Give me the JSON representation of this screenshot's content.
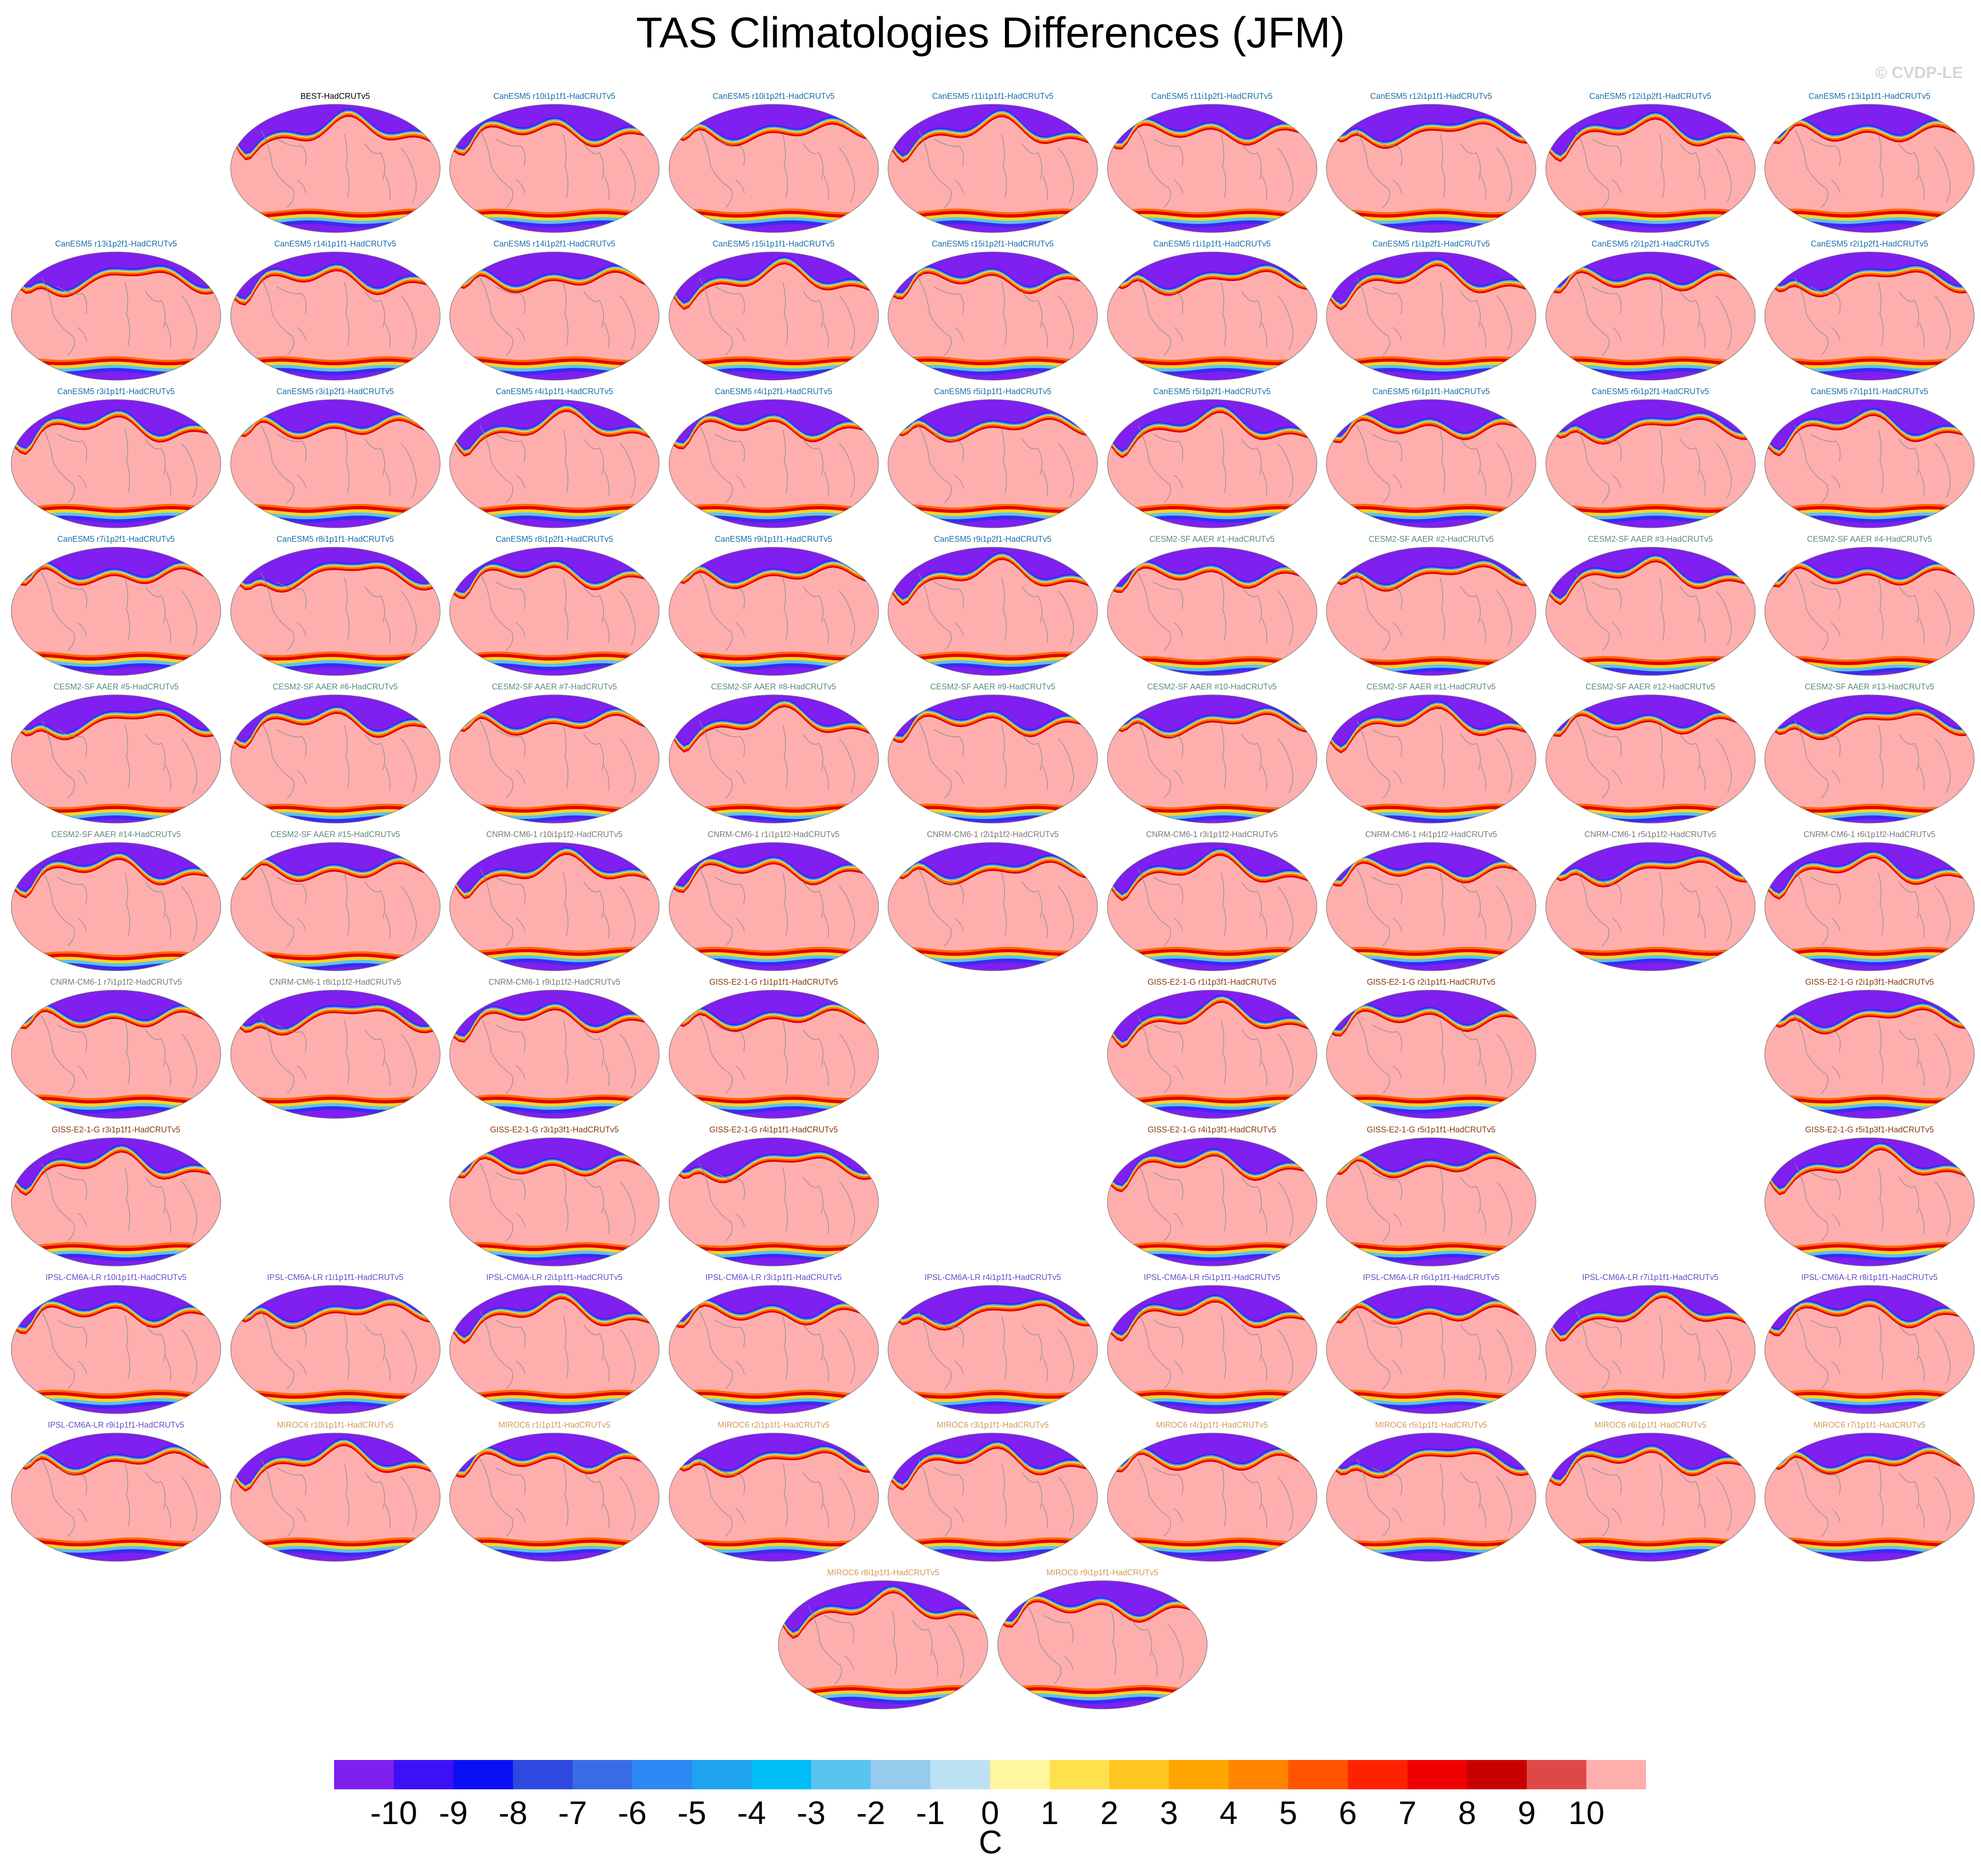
{
  "title": "TAS Climatologies Differences (JFM)",
  "copyright": "© CVDP-LE",
  "colors": {
    "best": "#000000",
    "canesm5": "#1a6fa8",
    "cesm2": "#5d8a7f",
    "cnrm": "#7a7a7a",
    "giss": "#8b3a10",
    "ipsl": "#6a4fc6",
    "miroc6": "#d29a5a"
  },
  "chart_data": {
    "type": "heatmap",
    "title": "TAS Climatologies Differences (JFM)",
    "units": "C",
    "colorbar": {
      "ticks": [
        "-10",
        "-9",
        "-8",
        "-7",
        "-6",
        "-5",
        "-4",
        "-3",
        "-2",
        "-1",
        "0",
        "1",
        "2",
        "3",
        "4",
        "5",
        "6",
        "7",
        "8",
        "9",
        "10"
      ],
      "colors": [
        "#7f1ff0",
        "#3c11f5",
        "#0a10f5",
        "#2e49e0",
        "#3a6be6",
        "#2c88f2",
        "#1ea3f0",
        "#00bdf5",
        "#58c4ef",
        "#96cbee",
        "#bde1f4",
        "#fff6a0",
        "#ffe04d",
        "#ffc520",
        "#ffa500",
        "#ff8400",
        "#ff5500",
        "#ff2200",
        "#f00000",
        "#c80000",
        "#e04848",
        "#ffaeae"
      ]
    },
    "panels": [
      {
        "row": 0,
        "col": 1,
        "label": "BEST-HadCRUTv5",
        "group": "best"
      },
      {
        "row": 0,
        "col": 2,
        "label": "CanESM5 r10i1p1f1-HadCRUTv5",
        "group": "canesm5"
      },
      {
        "row": 0,
        "col": 3,
        "label": "CanESM5 r10i1p2f1-HadCRUTv5",
        "group": "canesm5"
      },
      {
        "row": 0,
        "col": 4,
        "label": "CanESM5 r11i1p1f1-HadCRUTv5",
        "group": "canesm5"
      },
      {
        "row": 0,
        "col": 5,
        "label": "CanESM5 r11i1p2f1-HadCRUTv5",
        "group": "canesm5"
      },
      {
        "row": 0,
        "col": 6,
        "label": "CanESM5 r12i1p1f1-HadCRUTv5",
        "group": "canesm5"
      },
      {
        "row": 0,
        "col": 7,
        "label": "CanESM5 r12i1p2f1-HadCRUTv5",
        "group": "canesm5"
      },
      {
        "row": 0,
        "col": 8,
        "label": "CanESM5 r13i1p1f1-HadCRUTv5",
        "group": "canesm5"
      },
      {
        "row": 1,
        "col": 0,
        "label": "CanESM5 r13i1p2f1-HadCRUTv5",
        "group": "canesm5"
      },
      {
        "row": 1,
        "col": 1,
        "label": "CanESM5 r14i1p1f1-HadCRUTv5",
        "group": "canesm5"
      },
      {
        "row": 1,
        "col": 2,
        "label": "CanESM5 r14i1p2f1-HadCRUTv5",
        "group": "canesm5"
      },
      {
        "row": 1,
        "col": 3,
        "label": "CanESM5 r15i1p1f1-HadCRUTv5",
        "group": "canesm5"
      },
      {
        "row": 1,
        "col": 4,
        "label": "CanESM5 r15i1p2f1-HadCRUTv5",
        "group": "canesm5"
      },
      {
        "row": 1,
        "col": 5,
        "label": "CanESM5 r1i1p1f1-HadCRUTv5",
        "group": "canesm5"
      },
      {
        "row": 1,
        "col": 6,
        "label": "CanESM5 r1i1p2f1-HadCRUTv5",
        "group": "canesm5"
      },
      {
        "row": 1,
        "col": 7,
        "label": "CanESM5 r2i1p2f1-HadCRUTv5",
        "group": "canesm5"
      },
      {
        "row": 1,
        "col": 8,
        "label": "CanESM5 r2i1p2f1-HadCRUTv5",
        "group": "canesm5"
      },
      {
        "row": 2,
        "col": 0,
        "label": "CanESM5 r3i1p1f1-HadCRUTv5",
        "group": "canesm5"
      },
      {
        "row": 2,
        "col": 1,
        "label": "CanESM5 r3i1p2f1-HadCRUTv5",
        "group": "canesm5"
      },
      {
        "row": 2,
        "col": 2,
        "label": "CanESM5 r4i1p1f1-HadCRUTv5",
        "group": "canesm5"
      },
      {
        "row": 2,
        "col": 3,
        "label": "CanESM5 r4i1p2f1-HadCRUTv5",
        "group": "canesm5"
      },
      {
        "row": 2,
        "col": 4,
        "label": "CanESM5 r5i1p1f1-HadCRUTv5",
        "group": "canesm5"
      },
      {
        "row": 2,
        "col": 5,
        "label": "CanESM5 r5i1p2f1-HadCRUTv5",
        "group": "canesm5"
      },
      {
        "row": 2,
        "col": 6,
        "label": "CanESM5 r6i1p1f1-HadCRUTv5",
        "group": "canesm5"
      },
      {
        "row": 2,
        "col": 7,
        "label": "CanESM5 r6i1p2f1-HadCRUTv5",
        "group": "canesm5"
      },
      {
        "row": 2,
        "col": 8,
        "label": "CanESM5 r7i1p1f1-HadCRUTv5",
        "group": "canesm5"
      },
      {
        "row": 3,
        "col": 0,
        "label": "CanESM5 r7i1p2f1-HadCRUTv5",
        "group": "canesm5"
      },
      {
        "row": 3,
        "col": 1,
        "label": "CanESM5 r8i1p1f1-HadCRUTv5",
        "group": "canesm5"
      },
      {
        "row": 3,
        "col": 2,
        "label": "CanESM5 r8i1p2f1-HadCRUTv5",
        "group": "canesm5"
      },
      {
        "row": 3,
        "col": 3,
        "label": "CanESM5 r9i1p1f1-HadCRUTv5",
        "group": "canesm5"
      },
      {
        "row": 3,
        "col": 4,
        "label": "CanESM5 r9i1p2f1-HadCRUTv5",
        "group": "canesm5"
      },
      {
        "row": 3,
        "col": 5,
        "label": "CESM2-SF AAER #1-HadCRUTv5",
        "group": "cesm2"
      },
      {
        "row": 3,
        "col": 6,
        "label": "CESM2-SF AAER #2-HadCRUTv5",
        "group": "cesm2"
      },
      {
        "row": 3,
        "col": 7,
        "label": "CESM2-SF AAER #3-HadCRUTv5",
        "group": "cesm2"
      },
      {
        "row": 3,
        "col": 8,
        "label": "CESM2-SF AAER #4-HadCRUTv5",
        "group": "cesm2"
      },
      {
        "row": 4,
        "col": 0,
        "label": "CESM2-SF AAER #5-HadCRUTv5",
        "group": "cesm2"
      },
      {
        "row": 4,
        "col": 1,
        "label": "CESM2-SF AAER #6-HadCRUTv5",
        "group": "cesm2"
      },
      {
        "row": 4,
        "col": 2,
        "label": "CESM2-SF AAER #7-HadCRUTv5",
        "group": "cesm2"
      },
      {
        "row": 4,
        "col": 3,
        "label": "CESM2-SF AAER #8-HadCRUTv5",
        "group": "cesm2"
      },
      {
        "row": 4,
        "col": 4,
        "label": "CESM2-SF AAER #9-HadCRUTv5",
        "group": "cesm2"
      },
      {
        "row": 4,
        "col": 5,
        "label": "CESM2-SF AAER #10-HadCRUTv5",
        "group": "cesm2"
      },
      {
        "row": 4,
        "col": 6,
        "label": "CESM2-SF AAER #11-HadCRUTv5",
        "group": "cesm2"
      },
      {
        "row": 4,
        "col": 7,
        "label": "CESM2-SF AAER #12-HadCRUTv5",
        "group": "cesm2"
      },
      {
        "row": 4,
        "col": 8,
        "label": "CESM2-SF AAER #13-HadCRUTv5",
        "group": "cesm2"
      },
      {
        "row": 5,
        "col": 0,
        "label": "CESM2-SF AAER #14-HadCRUTv5",
        "group": "cesm2"
      },
      {
        "row": 5,
        "col": 1,
        "label": "CESM2-SF AAER #15-HadCRUTv5",
        "group": "cesm2"
      },
      {
        "row": 5,
        "col": 2,
        "label": "CNRM-CM6-1 r10i1p1f2-HadCRUTv5",
        "group": "cnrm"
      },
      {
        "row": 5,
        "col": 3,
        "label": "CNRM-CM6-1 r1i1p1f2-HadCRUTv5",
        "group": "cnrm"
      },
      {
        "row": 5,
        "col": 4,
        "label": "CNRM-CM6-1 r2i1p1f2-HadCRUTv5",
        "group": "cnrm"
      },
      {
        "row": 5,
        "col": 5,
        "label": "CNRM-CM6-1 r3i1p1f2-HadCRUTv5",
        "group": "cnrm"
      },
      {
        "row": 5,
        "col": 6,
        "label": "CNRM-CM6-1 r4i1p1f2-HadCRUTv5",
        "group": "cnrm"
      },
      {
        "row": 5,
        "col": 7,
        "label": "CNRM-CM6-1 r5i1p1f2-HadCRUTv5",
        "group": "cnrm"
      },
      {
        "row": 5,
        "col": 8,
        "label": "CNRM-CM6-1 r6i1p1f2-HadCRUTv5",
        "group": "cnrm"
      },
      {
        "row": 6,
        "col": 0,
        "label": "CNRM-CM6-1 r7i1p1f2-HadCRUTv5",
        "group": "cnrm"
      },
      {
        "row": 6,
        "col": 1,
        "label": "CNRM-CM6-1 r8i1p1f2-HadCRUTv5",
        "group": "cnrm"
      },
      {
        "row": 6,
        "col": 2,
        "label": "CNRM-CM6-1 r9i1p1f2-HadCRUTv5",
        "group": "cnrm"
      },
      {
        "row": 6,
        "col": 3,
        "label": "GISS-E2-1-G r1i1p1f1-HadCRUTv5",
        "group": "giss"
      },
      {
        "row": 6,
        "col": 5,
        "label": "GISS-E2-1-G r1i1p3f1-HadCRUTv5",
        "group": "giss"
      },
      {
        "row": 6,
        "col": 6,
        "label": "GISS-E2-1-G r2i1p1f1-HadCRUTv5",
        "group": "giss"
      },
      {
        "row": 6,
        "col": 8,
        "label": "GISS-E2-1-G r2i1p3f1-HadCRUTv5",
        "group": "giss"
      },
      {
        "row": 7,
        "col": 0,
        "label": "GISS-E2-1-G r3i1p1f1-HadCRUTv5",
        "group": "giss"
      },
      {
        "row": 7,
        "col": 2,
        "label": "GISS-E2-1-G r3i1p3f1-HadCRUTv5",
        "group": "giss"
      },
      {
        "row": 7,
        "col": 3,
        "label": "GISS-E2-1-G r4i1p1f1-HadCRUTv5",
        "group": "giss"
      },
      {
        "row": 7,
        "col": 5,
        "label": "GISS-E2-1-G r4i1p3f1-HadCRUTv5",
        "group": "giss"
      },
      {
        "row": 7,
        "col": 6,
        "label": "GISS-E2-1-G r5i1p1f1-HadCRUTv5",
        "group": "giss"
      },
      {
        "row": 7,
        "col": 8,
        "label": "GISS-E2-1-G r5i1p3f1-HadCRUTv5",
        "group": "giss"
      },
      {
        "row": 8,
        "col": 0,
        "label": "IPSL-CM6A-LR r10i1p1f1-HadCRUTv5",
        "group": "ipsl"
      },
      {
        "row": 8,
        "col": 1,
        "label": "IPSL-CM6A-LR r1i1p1f1-HadCRUTv5",
        "group": "ipsl"
      },
      {
        "row": 8,
        "col": 2,
        "label": "IPSL-CM6A-LR r2i1p1f1-HadCRUTv5",
        "group": "ipsl"
      },
      {
        "row": 8,
        "col": 3,
        "label": "IPSL-CM6A-LR r3i1p1f1-HadCRUTv5",
        "group": "ipsl"
      },
      {
        "row": 8,
        "col": 4,
        "label": "IPSL-CM6A-LR r4i1p1f1-HadCRUTv5",
        "group": "ipsl"
      },
      {
        "row": 8,
        "col": 5,
        "label": "IPSL-CM6A-LR r5i1p1f1-HadCRUTv5",
        "group": "ipsl"
      },
      {
        "row": 8,
        "col": 6,
        "label": "IPSL-CM6A-LR r6i1p1f1-HadCRUTv5",
        "group": "ipsl"
      },
      {
        "row": 8,
        "col": 7,
        "label": "IPSL-CM6A-LR r7i1p1f1-HadCRUTv5",
        "group": "ipsl"
      },
      {
        "row": 8,
        "col": 8,
        "label": "IPSL-CM6A-LR r8i1p1f1-HadCRUTv5",
        "group": "ipsl"
      },
      {
        "row": 9,
        "col": 0,
        "label": "IPSL-CM6A-LR r9i1p1f1-HadCRUTv5",
        "group": "ipsl"
      },
      {
        "row": 9,
        "col": 1,
        "label": "MIROC6 r10i1p1f1-HadCRUTv5",
        "group": "miroc6"
      },
      {
        "row": 9,
        "col": 2,
        "label": "MIROC6 r1i1p1f1-HadCRUTv5",
        "group": "miroc6"
      },
      {
        "row": 9,
        "col": 3,
        "label": "MIROC6 r2i1p1f1-HadCRUTv5",
        "group": "miroc6"
      },
      {
        "row": 9,
        "col": 4,
        "label": "MIROC6 r3i1p1f1-HadCRUTv5",
        "group": "miroc6"
      },
      {
        "row": 9,
        "col": 5,
        "label": "MIROC6 r4i1p1f1-HadCRUTv5",
        "group": "miroc6"
      },
      {
        "row": 9,
        "col": 6,
        "label": "MIROC6 r5i1p1f1-HadCRUTv5",
        "group": "miroc6"
      },
      {
        "row": 9,
        "col": 7,
        "label": "MIROC6 r6i1p1f1-HadCRUTv5",
        "group": "miroc6"
      },
      {
        "row": 9,
        "col": 8,
        "label": "MIROC6 r7i1p1f1-HadCRUTv5",
        "group": "miroc6"
      },
      {
        "row": 10,
        "col": 3.5,
        "label": "MIROC6 r8i1p1f1-HadCRUTv5",
        "group": "miroc6"
      },
      {
        "row": 10,
        "col": 4.5,
        "label": "MIROC6 r9i1p1f1-HadCRUTv5",
        "group": "miroc6"
      }
    ]
  }
}
